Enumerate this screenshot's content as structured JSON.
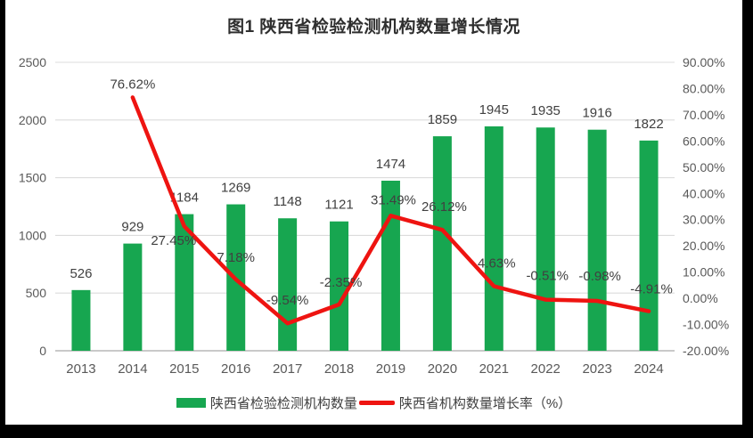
{
  "page_title": "图1 陕西省检验检测机构数量增长情况",
  "chart_data": {
    "type": "combo",
    "title": "图1 陕西省检验检测机构数量增长情况",
    "categories": [
      "2013",
      "2014",
      "2015",
      "2016",
      "2017",
      "2018",
      "2019",
      "2020",
      "2021",
      "2022",
      "2023",
      "2024"
    ],
    "series": [
      {
        "name": "陕西省检验检测机构数量",
        "type": "bar",
        "axis": "left",
        "values": [
          526,
          929,
          1184,
          1269,
          1148,
          1121,
          1474,
          1859,
          1945,
          1935,
          1916,
          1822
        ],
        "labels": [
          "526",
          "929",
          "1184",
          "1269",
          "1148",
          "1121",
          "1474",
          "1859",
          "1945",
          "1935",
          "1916",
          "1822"
        ]
      },
      {
        "name": "陕西省机构数量增长率（%）",
        "type": "line",
        "axis": "right",
        "values": [
          null,
          76.62,
          27.45,
          7.18,
          -9.54,
          -2.35,
          31.49,
          26.12,
          4.63,
          -0.51,
          -0.98,
          -4.91
        ],
        "labels": [
          null,
          "76.62%",
          "27.45%",
          "7.18%",
          "-9.54%",
          "-2.35%",
          "31.49%",
          "26.12%",
          "4.63%",
          "-0.51%",
          "-0.98%",
          "-4.91%"
        ]
      }
    ],
    "left_axis": {
      "min": 0,
      "max": 2500,
      "ticks": [
        "0",
        "500",
        "1000",
        "1500",
        "2000",
        "2500"
      ]
    },
    "right_axis": {
      "min": -20,
      "max": 90,
      "ticks": [
        "-20.00%",
        "-10.00%",
        "0.00%",
        "10.00%",
        "20.00%",
        "30.00%",
        "40.00%",
        "50.00%",
        "60.00%",
        "70.00%",
        "80.00%",
        "90.00%"
      ]
    },
    "grid": true,
    "legend_position": "bottom",
    "legend": [
      {
        "label": "陕西省检验检测机构数量",
        "marker": "bar"
      },
      {
        "label": "陕西省机构数量增长率（%）",
        "marker": "line"
      }
    ],
    "colors": {
      "bar": "#17a650",
      "line": "#ee1411",
      "gridline": "#dcdcdc",
      "axis_line": "#b7b7b7",
      "tick_text": "#595959",
      "label_text": "#404040",
      "title_text": "#2f2f2f",
      "frame": "#000000",
      "background": "#ffffff"
    }
  }
}
